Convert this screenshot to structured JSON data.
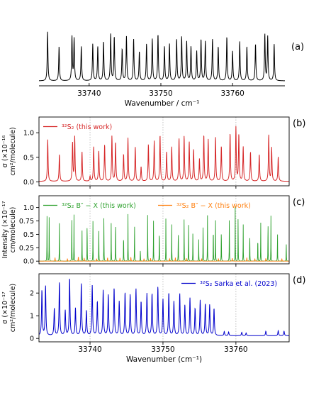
{
  "figure": {
    "panels": [
      {
        "tag": "(a)",
        "xlabel": "Wavenumber / cm⁻¹",
        "ylabel_lines": [],
        "y_axis_visible": false,
        "box_style": "bottom-only",
        "ticks_inside": true,
        "xticks": [
          33740,
          33750,
          33760
        ],
        "show_xtick_labels": true,
        "yticks": [],
        "grid_x": [],
        "legend": null
      },
      {
        "tag": "(b)",
        "xlabel": "",
        "ylabel_lines": [
          "σ (×10⁻¹⁶",
          "cm²/molecule)"
        ],
        "y_axis_visible": true,
        "box_style": "full",
        "xticks": [
          33740,
          33750,
          33760
        ],
        "show_xtick_labels": false,
        "yticks": [
          0.0,
          0.5,
          1.0
        ],
        "ytick_labels": [
          "0.0",
          "0.5",
          "1.0"
        ],
        "grid_x": [
          33740,
          33750,
          33760
        ],
        "legend": {
          "placement": "top-left",
          "entries": [
            {
              "label": "³²S₂ (this work)",
              "color": "#d62728"
            }
          ]
        }
      },
      {
        "tag": "(c)",
        "xlabel": "",
        "ylabel_lines": [
          "Intensity (×10⁻¹⁷",
          "cm/molecule)"
        ],
        "y_axis_visible": true,
        "box_style": "full",
        "xticks": [
          33740,
          33750,
          33760
        ],
        "show_xtick_labels": false,
        "yticks": [
          0.0,
          0.25,
          0.5,
          0.75,
          1.0
        ],
        "ytick_labels": [
          "0.0",
          "0.25",
          "0.5",
          "0.75",
          "1.0"
        ],
        "grid_x": [
          33740,
          33750,
          33760
        ],
        "legend": {
          "placement": "top",
          "entries": [
            {
              "label": "³²S₂ B″ − X (this work)",
              "color": "#2ca02c"
            },
            {
              "label": "³²S₂ B″ − X (this work)",
              "color": "#ff7f0e"
            }
          ]
        }
      },
      {
        "tag": "(d)",
        "xlabel": "Wavenumber (cm⁻¹)",
        "ylabel_lines": [
          "σ (×10⁻¹⁷",
          "cm²/molecule)"
        ],
        "y_axis_visible": true,
        "box_style": "full",
        "xticks": [
          33740,
          33750,
          33760
        ],
        "show_xtick_labels": true,
        "yticks": [
          0,
          1,
          2
        ],
        "ytick_labels": [
          "0",
          "1",
          "2"
        ],
        "grid_x": [
          33740,
          33750,
          33760
        ],
        "legend": {
          "placement": "top-right",
          "entries": [
            {
              "label": "³²S₂ Sarka et al. (2023)",
              "color": "#0000cc"
            }
          ]
        }
      }
    ]
  },
  "chart_data": [
    {
      "panel": "(a)",
      "type": "line",
      "xlim": [
        33733,
        33767.3
      ],
      "ylim": [
        0,
        1.2
      ],
      "series": [
        {
          "color": "#000000",
          "baseline": 0.1,
          "width": 0.12,
          "peaks_x": [
            33734.2,
            33735.8,
            33737.6,
            33737.9,
            33738.9,
            33740.5,
            33741.2,
            33742.0,
            33743.0,
            33743.5,
            33744.6,
            33745.2,
            33746.2,
            33747.0,
            33748.0,
            33748.8,
            33749.6,
            33750.5,
            33751.2,
            33752.2,
            33752.9,
            33753.6,
            33754.2,
            33755.0,
            33755.6,
            33756.2,
            33757.2,
            33758.0,
            33759.2,
            33760.0,
            33761.0,
            33762.0,
            33763.2,
            33764.5,
            33764.9,
            33765.8
          ],
          "peaks_y": [
            1.0,
            0.7,
            0.9,
            0.85,
            0.7,
            0.75,
            0.7,
            0.8,
            0.95,
            0.9,
            0.65,
            0.9,
            0.85,
            0.6,
            0.75,
            0.85,
            0.95,
            0.7,
            0.75,
            0.85,
            0.9,
            0.8,
            0.7,
            0.6,
            0.85,
            0.8,
            0.85,
            0.7,
            0.9,
            0.6,
            0.8,
            0.7,
            0.75,
            0.95,
            0.9,
            0.75
          ]
        }
      ]
    },
    {
      "panel": "(b)",
      "type": "line",
      "xlim": [
        33733,
        33767.3
      ],
      "ylim": [
        -0.08,
        1.32
      ],
      "series": [
        {
          "name": "³²S₂ (this work)",
          "color": "#d62728",
          "baseline": 0.01,
          "width": 0.11,
          "peaks_x": [
            33734.2,
            33735.8,
            33737.6,
            33737.9,
            33738.9,
            33740.0,
            33740.5,
            33741.2,
            33742.0,
            33743.0,
            33743.5,
            33744.6,
            33745.2,
            33746.2,
            33747.0,
            33748.0,
            33748.8,
            33749.6,
            33750.5,
            33751.2,
            33752.2,
            33752.9,
            33753.6,
            33754.2,
            33755.0,
            33755.6,
            33756.2,
            33757.2,
            33758.0,
            33759.2,
            33760.0,
            33760.4,
            33761.0,
            33762.0,
            33763.2,
            33764.5,
            33764.9,
            33765.8
          ],
          "peaks_y": [
            0.85,
            0.55,
            0.78,
            0.9,
            0.6,
            0.1,
            0.7,
            0.62,
            0.75,
            0.92,
            0.8,
            0.55,
            0.88,
            0.7,
            0.3,
            0.75,
            0.82,
            0.95,
            0.6,
            0.7,
            0.88,
            0.92,
            0.8,
            0.65,
            0.45,
            0.95,
            0.85,
            0.9,
            0.72,
            0.98,
            1.1,
            0.95,
            0.7,
            0.6,
            0.55,
            0.95,
            0.68,
            0.5
          ]
        }
      ]
    },
    {
      "panel": "(c)",
      "type": "line",
      "xlim": [
        33733,
        33767.3
      ],
      "ylim": [
        -0.05,
        1.22
      ],
      "series": [
        {
          "name": "³²S₂ B″ − X (this work)",
          "color": "#2ca02c",
          "baseline": 0.0,
          "width": 0.03,
          "peaks_x": [
            33734.1,
            33734.4,
            33735.8,
            33737.5,
            33737.8,
            33738.9,
            33739.6,
            33740.4,
            33741.2,
            33741.9,
            33742.9,
            33743.5,
            33744.6,
            33745.2,
            33746.1,
            33746.9,
            33747.9,
            33748.7,
            33749.5,
            33750.4,
            33751.2,
            33752.1,
            33752.9,
            33753.5,
            33754.1,
            33754.9,
            33755.5,
            33756.1,
            33756.9,
            33757.2,
            33758.0,
            33759.1,
            33759.9,
            33760.3,
            33761.0,
            33761.9,
            33763.0,
            33763.4,
            33764.4,
            33764.8,
            33765.7,
            33766.9
          ],
          "peaks_y": [
            0.86,
            0.86,
            0.86,
            0.98,
            0.88,
            0.62,
            0.86,
            0.75,
            0.7,
            0.95,
            0.72,
            0.95,
            0.62,
            0.88,
            0.8,
            0.25,
            0.92,
            0.82,
            0.75,
            0.88,
            0.72,
            0.7,
            0.9,
            0.8,
            0.58,
            0.42,
            0.85,
            0.9,
            0.8,
            0.88,
            0.72,
            0.95,
            1.02,
            0.95,
            0.72,
            0.62,
            0.55,
            0.78,
            0.88,
            0.85,
            0.62,
            0.4
          ]
        },
        {
          "name": "³²S₂ B″ − X (this work)",
          "color": "#ff7f0e",
          "baseline": 0.0,
          "width": 0.05,
          "peaks_x": [
            33735.2,
            33736.9,
            33738.4,
            33739.2,
            33740.9,
            33742.4,
            33744.1,
            33745.6,
            33747.4,
            33748.3,
            33750.9,
            33751.7,
            33753.2,
            33755.3,
            33757.6,
            33759.5,
            33761.5,
            33762.6,
            33764.1,
            33766.3
          ],
          "peaks_y": [
            0.07,
            0.05,
            0.09,
            0.06,
            0.05,
            0.07,
            0.06,
            0.08,
            0.05,
            0.06,
            0.05,
            0.07,
            0.06,
            0.05,
            0.05,
            0.06,
            0.07,
            0.05,
            0.06,
            0.05
          ]
        }
      ]
    },
    {
      "panel": "(d)",
      "type": "line",
      "xlim": [
        33733,
        33767.3
      ],
      "ylim": [
        -0.15,
        2.85
      ],
      "series": [
        {
          "name": "³²S₂ Sarka et al. (2023)",
          "color": "#0000cc",
          "baseline": 0.12,
          "width": 0.12,
          "peaks_x": [
            33733.4,
            33733.9,
            33735.1,
            33735.8,
            33736.6,
            33737.2,
            33738.0,
            33738.8,
            33739.5,
            33740.3,
            33741.0,
            33741.8,
            33742.5,
            33743.3,
            33744.0,
            33744.8,
            33745.5,
            33746.3,
            33747.0,
            33747.8,
            33748.5,
            33749.3,
            33750.0,
            33750.8,
            33751.5,
            33752.3,
            33753.0,
            33753.7,
            33754.4,
            33755.1,
            33755.8,
            33756.4,
            33757.0,
            33758.4,
            33759.0,
            33760.8,
            33761.4,
            33764.1,
            33765.8,
            33766.6
          ],
          "peaks_y": [
            2.0,
            2.2,
            1.2,
            2.35,
            1.1,
            2.55,
            1.2,
            2.3,
            1.1,
            2.2,
            1.5,
            2.0,
            1.8,
            2.1,
            1.5,
            1.9,
            1.8,
            2.05,
            1.5,
            1.85,
            1.85,
            2.15,
            1.6,
            1.9,
            1.5,
            1.85,
            1.35,
            1.65,
            1.2,
            1.55,
            1.4,
            1.35,
            1.2,
            0.18,
            0.16,
            0.15,
            0.12,
            0.2,
            0.22,
            0.2
          ]
        }
      ]
    }
  ]
}
